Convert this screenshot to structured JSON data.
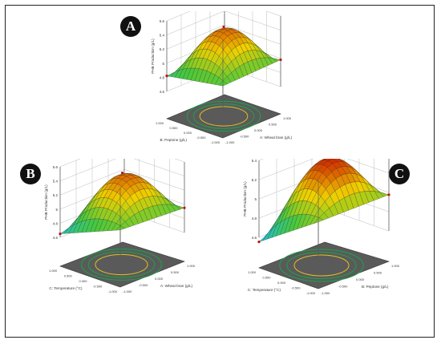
{
  "colors": {
    "frame": "#222222",
    "badge": "#111111",
    "floor": "#5a5a5a",
    "contour_outer": "#1aa34a",
    "contour_inner": "#e0c020",
    "design_point": "#c01010",
    "high": "#d02000",
    "mid": "#f0d000",
    "low": "#20c0d0"
  },
  "chart_data": [
    {
      "panel": "A",
      "type": "surface3d",
      "zlabel": "PHB Production (g/L)",
      "zticks": [
        "4.6",
        "4.8",
        "5",
        "5.2",
        "5.4",
        "5.6"
      ],
      "zlim": [
        4.6,
        5.6
      ],
      "x_axis": {
        "label": "A: Wheat bran (g/L)",
        "ticks": [
          "-1.000",
          "-0.500",
          "0.000",
          "0.500",
          "1.000"
        ]
      },
      "y_axis": {
        "label": "B: Peptone (g/L)",
        "ticks": [
          "1.000",
          "0.500",
          "0.000",
          "-0.500",
          "-1.000"
        ]
      },
      "surface": {
        "peak": 5.45,
        "corners": [
          4.95,
          4.98,
          4.85,
          4.82
        ]
      },
      "gridlines": true
    },
    {
      "panel": "B",
      "type": "surface3d",
      "zlabel": "PHB Production (g/L)",
      "zticks": [
        "4.6",
        "4.8",
        "5",
        "5.2",
        "5.4",
        "5.6"
      ],
      "zlim": [
        4.6,
        5.6
      ],
      "x_axis": {
        "label": "A: Wheat bran (g/L)",
        "ticks": [
          "-1.000",
          "-0.500",
          "0.000",
          "0.500",
          "1.000"
        ]
      },
      "y_axis": {
        "label": "C: Temperature (°C)",
        "ticks": [
          "1.000",
          "0.500",
          "0.000",
          "-0.500",
          "-1.000"
        ]
      },
      "surface": {
        "peak": 5.45,
        "corners": [
          5.0,
          4.95,
          4.9,
          4.65
        ]
      },
      "gridlines": true
    },
    {
      "panel": "C",
      "type": "surface3d",
      "zlabel": "PHB Production (g/L)",
      "zticks": [
        "4.6",
        "4.8",
        "5",
        "5.2",
        "5.4"
      ],
      "zlim": [
        4.6,
        5.45
      ],
      "x_axis": {
        "label": "B: Peptone (g/L)",
        "ticks": [
          "-1.000",
          "-0.500",
          "0.000",
          "0.500",
          "1.000"
        ]
      },
      "y_axis": {
        "label": "C: Temperature (°C)",
        "ticks": [
          "1.000",
          "0.500",
          "0.000",
          "-0.500",
          "-1.000"
        ]
      },
      "surface": {
        "peak": 5.42,
        "corners": [
          5.0,
          5.0,
          4.95,
          4.55
        ]
      },
      "gridlines": true
    }
  ]
}
